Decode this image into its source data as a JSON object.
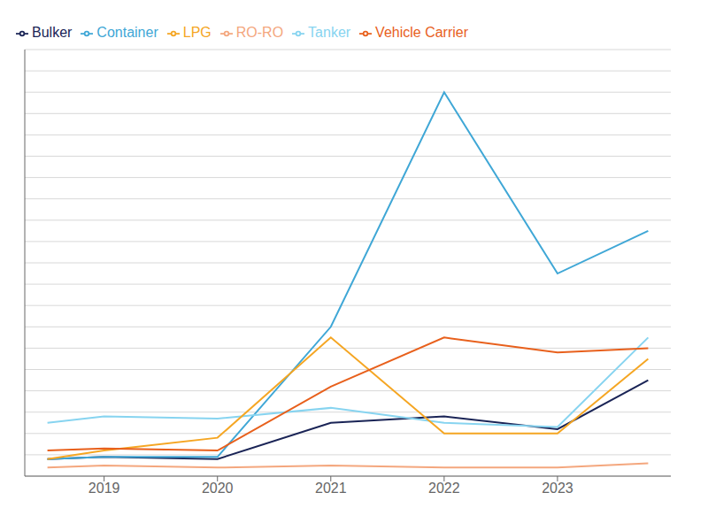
{
  "chart_data": {
    "type": "line",
    "x": [
      2018.5,
      2019,
      2020,
      2021,
      2022,
      2023,
      2023.8
    ],
    "series": [
      {
        "name": "Bulker",
        "color": "#1a2456",
        "values": [
          0.8,
          0.9,
          0.8,
          2.5,
          2.8,
          2.2,
          4.5
        ]
      },
      {
        "name": "Container",
        "color": "#3fa7d6",
        "values": [
          0.8,
          0.9,
          0.9,
          7.0,
          18.0,
          9.5,
          11.5
        ]
      },
      {
        "name": "Tanker",
        "color": "#87d4f0",
        "values": [
          2.5,
          2.8,
          2.7,
          3.2,
          2.5,
          2.3,
          6.5
        ]
      },
      {
        "name": "LPG",
        "color": "#f5a623",
        "values": [
          0.8,
          1.2,
          1.8,
          6.5,
          2.0,
          2.0,
          5.5
        ]
      },
      {
        "name": "Vehicle Carrier",
        "color": "#e8601c",
        "values": [
          1.2,
          1.3,
          1.2,
          4.2,
          6.5,
          5.8,
          6.0
        ]
      },
      {
        "name": "RO-RO",
        "color": "#f4a77e",
        "values": [
          0.4,
          0.5,
          0.4,
          0.5,
          0.4,
          0.4,
          0.6
        ]
      }
    ],
    "xlim": [
      2018.3,
      2024.0
    ],
    "ylim": [
      0,
      20
    ],
    "xticks": [
      2019,
      2020,
      2021,
      2022,
      2023
    ],
    "yticks": [
      0,
      1,
      2,
      3,
      4,
      5,
      6,
      7,
      8,
      9,
      10,
      11,
      12,
      13,
      14,
      15,
      16,
      17,
      18,
      19,
      20
    ],
    "grid": true,
    "legend": "upper left",
    "tick_labels": "x"
  }
}
